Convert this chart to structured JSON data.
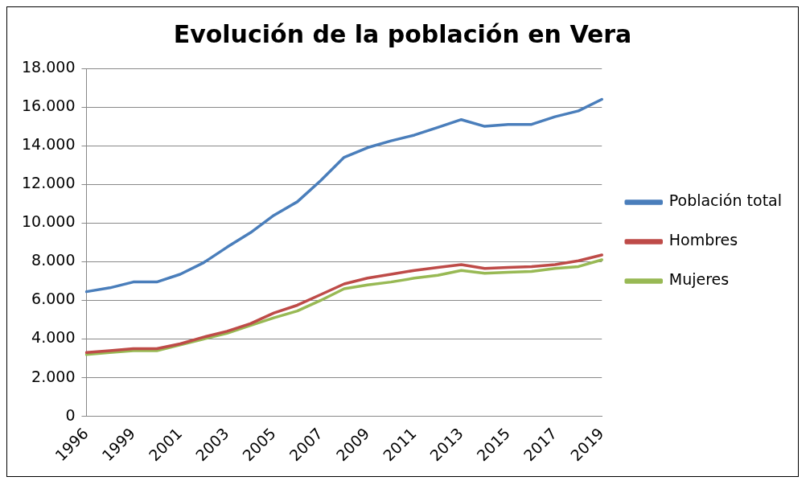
{
  "chart_data": {
    "type": "line",
    "title": "Evolución de la población en Vera",
    "categories": [
      "1996",
      null,
      "1999",
      null,
      "2001",
      null,
      "2003",
      null,
      "2005",
      null,
      "2007",
      null,
      "2009",
      null,
      "2011",
      null,
      "2013",
      null,
      "2015",
      null,
      "2017",
      null,
      "2019"
    ],
    "series": [
      {
        "name": "Población total",
        "color": "#4a7ebb",
        "values": [
          6450,
          6650,
          6950,
          6950,
          7350,
          7950,
          8750,
          9500,
          10400,
          11100,
          12200,
          13400,
          13900,
          14250,
          14550,
          14950,
          15350,
          15000,
          15100,
          15100,
          15500,
          15800,
          16400
        ]
      },
      {
        "name": "Hombres",
        "color": "#be4b48",
        "values": [
          3300,
          3400,
          3500,
          3500,
          3750,
          4100,
          4400,
          4800,
          5350,
          5750,
          6300,
          6850,
          7150,
          7350,
          7550,
          7700,
          7850,
          7650,
          7700,
          7750,
          7850,
          8050,
          8350
        ]
      },
      {
        "name": "Mujeres",
        "color": "#98b954",
        "values": [
          3200,
          3300,
          3400,
          3400,
          3700,
          4000,
          4300,
          4700,
          5100,
          5450,
          6000,
          6600,
          6800,
          6950,
          7150,
          7300,
          7550,
          7400,
          7450,
          7500,
          7650,
          7750,
          8100
        ]
      }
    ],
    "ylim": [
      0,
      18000
    ],
    "yticks": [
      0,
      {
        "value": 2000,
        "label": "2.000"
      },
      {
        "value": 4000,
        "label": "4.000"
      },
      {
        "value": 6000,
        "label": "6.000"
      },
      {
        "value": 8000,
        "label": "8.000"
      },
      {
        "value": 10000,
        "label": "10.000"
      },
      {
        "value": 12000,
        "label": "12.000"
      },
      {
        "value": 14000,
        "label": "14.000"
      },
      {
        "value": 16000,
        "label": "16.000"
      },
      {
        "value": 18000,
        "label": "18.000"
      }
    ],
    "grid": "y",
    "legend": "right",
    "marker": "none",
    "line_style": "solid"
  }
}
